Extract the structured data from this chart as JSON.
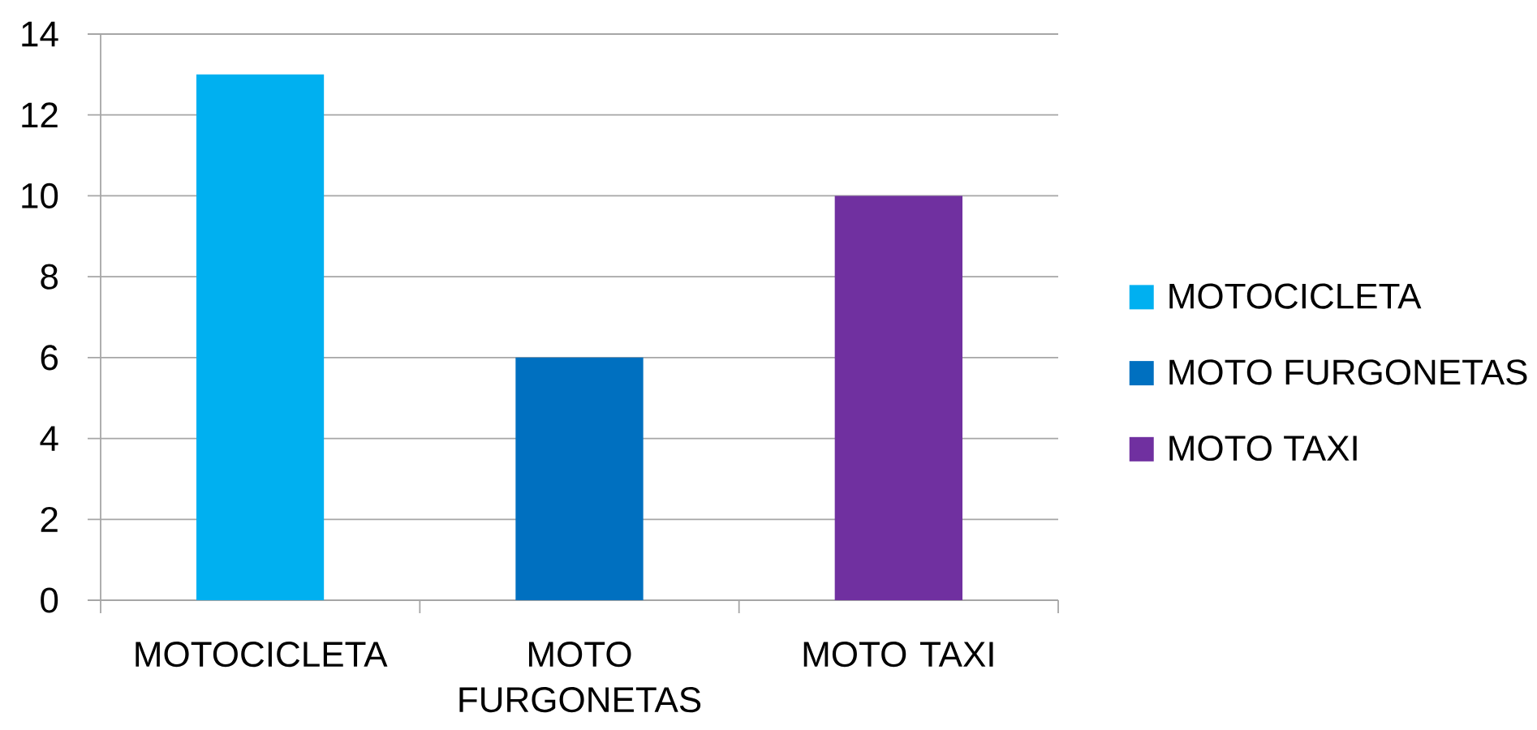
{
  "chart_data": {
    "type": "bar",
    "categories": [
      "MOTOCICLETA",
      "MOTO FURGONETAS",
      "MOTO TAXI"
    ],
    "series": [
      {
        "name": "MOTOCICLETA",
        "color": "#00b0f0",
        "values": [
          13,
          null,
          null
        ]
      },
      {
        "name": "MOTO FURGONETAS",
        "color": "#0070c0",
        "values": [
          null,
          6,
          null
        ]
      },
      {
        "name": "MOTO TAXI",
        "color": "#7030a0",
        "values": [
          null,
          null,
          10
        ]
      }
    ],
    "ylim": [
      0,
      14
    ],
    "yticks": [
      0,
      2,
      4,
      6,
      8,
      10,
      12,
      14
    ],
    "grid": "y",
    "legend": "right"
  }
}
